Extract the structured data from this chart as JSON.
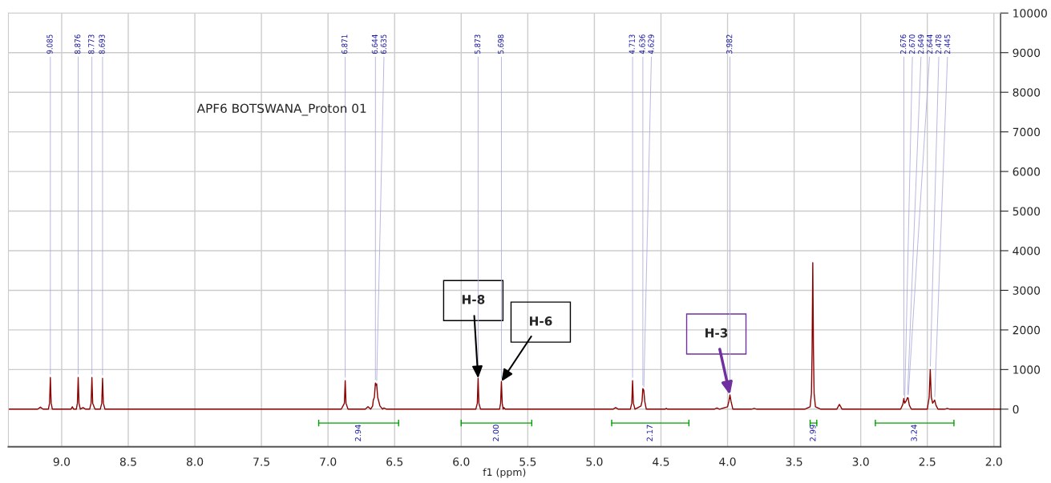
{
  "chart_data": {
    "type": "line",
    "xlabel": "f1 (ppm)",
    "series": [
      {
        "x": [
          9.4,
          9.18,
          9.16,
          9.14,
          9.1,
          9.091,
          9.085,
          9.079,
          9.07,
          8.93,
          8.92,
          8.91,
          8.89,
          8.882,
          8.876,
          8.87,
          8.86,
          8.84,
          8.82,
          8.79,
          8.779,
          8.773,
          8.767,
          8.75,
          8.71,
          8.699,
          8.693,
          8.687,
          8.675,
          6.9,
          6.877,
          6.871,
          6.865,
          6.85,
          6.72,
          6.7,
          6.68,
          6.665,
          6.66,
          6.652,
          6.644,
          6.64,
          6.635,
          6.627,
          6.61,
          6.59,
          6.58,
          6.56,
          5.89,
          5.879,
          5.873,
          5.867,
          5.855,
          5.712,
          5.704,
          5.698,
          5.692,
          5.685,
          5.68,
          5.67,
          4.86,
          4.84,
          4.82,
          4.73,
          4.719,
          4.713,
          4.707,
          4.695,
          4.65,
          4.642,
          4.636,
          4.629,
          4.622,
          4.61,
          4.47,
          4.46,
          4.45,
          4.1,
          4.08,
          4.06,
          4.0,
          3.99,
          3.982,
          3.974,
          3.96,
          3.82,
          3.8,
          3.78,
          3.42,
          3.38,
          3.37,
          3.365,
          3.36,
          3.355,
          3.35,
          3.34,
          3.3,
          3.18,
          3.16,
          3.14,
          2.7,
          2.684,
          2.676,
          2.67,
          2.66,
          2.649,
          2.644,
          2.635,
          2.62,
          2.5,
          2.486,
          2.478,
          2.47,
          2.46,
          2.45,
          2.445,
          2.435,
          2.42,
          2.37,
          2.35,
          2.33,
          1.95
        ],
        "values": [
          0,
          0,
          50,
          0,
          0,
          150,
          800,
          150,
          0,
          0,
          60,
          0,
          0,
          150,
          800,
          150,
          0,
          40,
          0,
          0,
          150,
          800,
          150,
          0,
          0,
          150,
          780,
          150,
          0,
          0,
          150,
          720,
          150,
          0,
          0,
          60,
          0,
          80,
          230,
          300,
          660,
          600,
          640,
          300,
          80,
          0,
          30,
          0,
          0,
          150,
          780,
          150,
          0,
          0,
          150,
          700,
          150,
          0,
          40,
          0,
          0,
          40,
          0,
          0,
          150,
          720,
          150,
          0,
          80,
          200,
          520,
          480,
          200,
          0,
          0,
          20,
          0,
          0,
          30,
          0,
          60,
          200,
          360,
          200,
          0,
          0,
          20,
          0,
          0,
          60,
          400,
          1500,
          3700,
          1500,
          400,
          60,
          0,
          0,
          120,
          0,
          0,
          120,
          270,
          150,
          200,
          290,
          280,
          100,
          0,
          0,
          300,
          1000,
          300,
          150,
          200,
          230,
          100,
          0,
          0,
          20,
          0,
          0
        ],
        "color": "#8b0000"
      },
      {
        "name": "2.94",
        "type": "line",
        "x": [
          7.07,
          6.47
        ],
        "values": [
          -350,
          -350
        ],
        "color": "#00a000"
      },
      {
        "name": "2.00",
        "type": "line",
        "x": [
          6.0,
          5.47
        ],
        "values": [
          -350,
          -350
        ],
        "color": "#00a000"
      },
      {
        "name": "2.17",
        "type": "line",
        "x": [
          4.87,
          4.29
        ],
        "values": [
          -350,
          -350
        ],
        "color": "#00a000"
      },
      {
        "name": "2.99",
        "type": "line",
        "x": [
          3.38,
          3.33
        ],
        "values": [
          -350,
          -350
        ],
        "color": "#00a000"
      },
      {
        "name": "3.24",
        "type": "line",
        "x": [
          2.89,
          2.3
        ],
        "values": [
          -350,
          -350
        ],
        "color": "#00a000"
      }
    ],
    "xlim": [
      9.4,
      1.95
    ],
    "ylim": [
      -950,
      10000
    ],
    "xticks": [
      {
        "value": 9.0,
        "label": "9.0"
      },
      {
        "value": 8.5,
        "label": "8.5"
      },
      {
        "value": 8.0,
        "label": "8.0"
      },
      {
        "value": 7.5,
        "label": "7.5"
      },
      {
        "value": 7.0,
        "label": "7.0"
      },
      {
        "value": 6.5,
        "label": "6.5"
      },
      {
        "value": 6.0,
        "label": "6.0"
      },
      {
        "value": 5.5,
        "label": "5.5"
      },
      {
        "value": 5.0,
        "label": "5.0"
      },
      {
        "value": 4.5,
        "label": "4.5"
      },
      {
        "value": 4.0,
        "label": "4.0"
      },
      {
        "value": 3.5,
        "label": "3.5"
      },
      {
        "value": 3.0,
        "label": "3.0"
      },
      {
        "value": 2.5,
        "label": "2.5"
      },
      {
        "value": 2.0,
        "label": "2.0"
      }
    ],
    "yticks": [
      0,
      1000,
      2000,
      3000,
      4000,
      5000,
      6000,
      7000,
      8000,
      9000,
      10000
    ],
    "grid": true,
    "annotations": [
      "APF6 BOTSWANA_Proton 01",
      {
        "text": "H-8",
        "x": 5.873,
        "y": 780
      },
      {
        "text": "H-6",
        "x": 5.698,
        "y": 700
      },
      {
        "text": "H-3",
        "x": 3.982,
        "y": 360
      },
      {
        "text": "9.085",
        "x": 9.085,
        "y": 800
      },
      {
        "text": "8.876",
        "x": 8.876,
        "y": 800
      },
      {
        "text": "8.773",
        "x": 8.773,
        "y": 800
      },
      {
        "text": "8.693",
        "x": 8.693,
        "y": 780
      },
      {
        "text": "6.871",
        "x": 6.871,
        "y": 720
      },
      {
        "text": "6.644",
        "x": 6.644,
        "y": 660
      },
      {
        "text": "6.635",
        "x": 6.635,
        "y": 640
      },
      {
        "text": "5.873",
        "x": 5.873,
        "y": 780
      },
      {
        "text": "5.698",
        "x": 5.698,
        "y": 700
      },
      {
        "text": "4.713",
        "x": 4.713,
        "y": 720
      },
      {
        "text": "4.636",
        "x": 4.636,
        "y": 520
      },
      {
        "text": "4.629",
        "x": 4.629,
        "y": 480
      },
      {
        "text": "3.982",
        "x": 3.982,
        "y": 360
      },
      {
        "text": "2.676",
        "x": 2.676,
        "y": 270
      },
      {
        "text": "2.670",
        "x": 2.67,
        "y": 150
      },
      {
        "text": "2.649",
        "x": 2.649,
        "y": 290
      },
      {
        "text": "2.644",
        "x": 2.644,
        "y": 280
      },
      {
        "text": "2.478",
        "x": 2.478,
        "y": 1000
      },
      {
        "text": "2.445",
        "x": 2.445,
        "y": 230
      }
    ]
  }
}
